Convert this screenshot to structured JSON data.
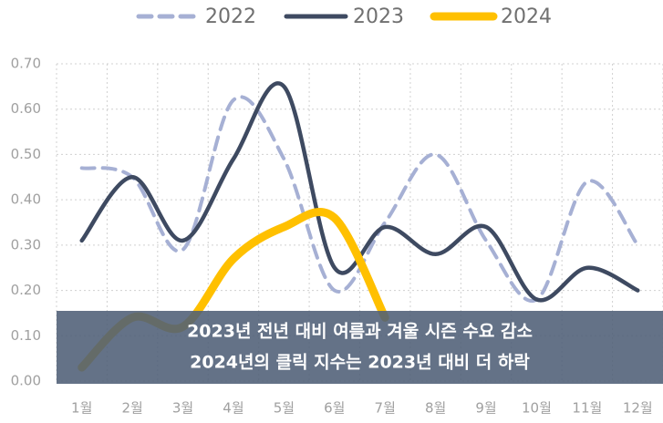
{
  "chart_data": {
    "type": "line",
    "categories": [
      "1월",
      "2월",
      "3월",
      "4월",
      "5월",
      "6월",
      "7월",
      "8월",
      "9월",
      "10월",
      "11월",
      "12월"
    ],
    "series": [
      {
        "name": "2022",
        "color": "#a6b0d4",
        "dashed": true,
        "values": [
          0.47,
          0.45,
          0.29,
          0.62,
          0.49,
          0.2,
          0.35,
          0.5,
          0.31,
          0.18,
          0.44,
          0.3
        ]
      },
      {
        "name": "2023",
        "color": "#3e4a61",
        "values": [
          0.31,
          0.45,
          0.31,
          0.49,
          0.65,
          0.25,
          0.34,
          0.28,
          0.34,
          0.18,
          0.25,
          0.2
        ]
      },
      {
        "name": "2024",
        "color": "#ffc000",
        "values": [
          0.03,
          0.14,
          0.12,
          0.27,
          0.34,
          0.36,
          0.14,
          null,
          null,
          null,
          null,
          null
        ]
      }
    ],
    "ylim": [
      0,
      0.7
    ],
    "yticks": [
      {
        "value": 0,
        "label": "0.00"
      },
      {
        "value": 0.1,
        "label": "0.10"
      },
      {
        "value": 0.2,
        "label": "0.20"
      },
      {
        "value": 0.3,
        "label": "0.30"
      },
      {
        "value": 0.4,
        "label": "0.40"
      },
      {
        "value": 0.5,
        "label": "0.50"
      },
      {
        "value": 0.6,
        "label": "0.60"
      },
      {
        "value": 0.7,
        "label": "0.70"
      }
    ],
    "grid": true,
    "legend": "top",
    "annotations": [
      "2023년 전년 대비 여름과 겨울 시즌 수요 감소",
      "2024년의 클릭 지수는 2023년 대비 더 하락"
    ]
  }
}
